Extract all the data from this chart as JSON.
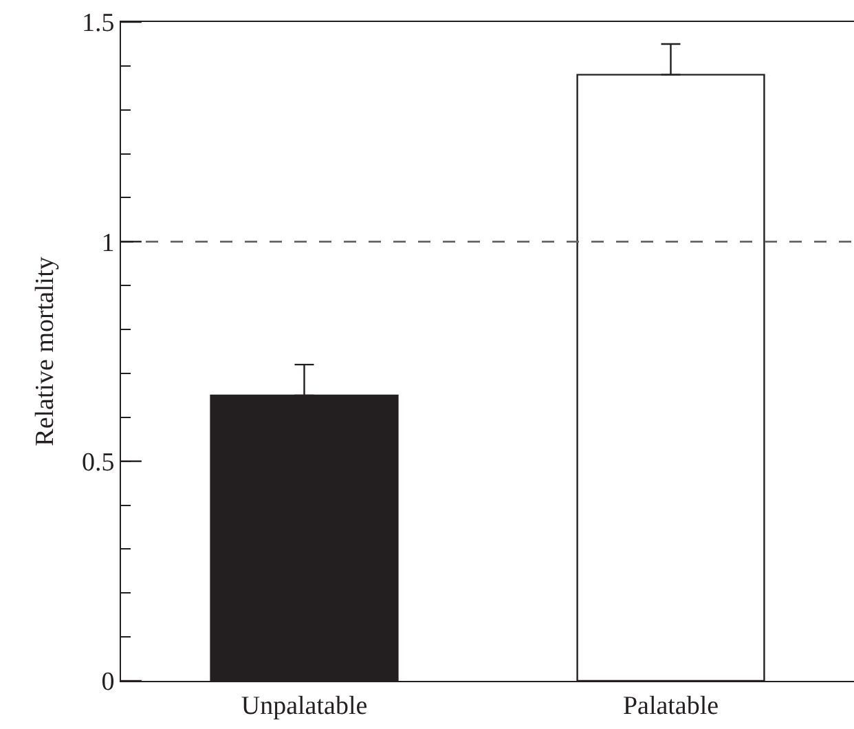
{
  "chart_data": {
    "type": "bar",
    "ylabel": "Relative mortality",
    "categories": [
      "Unpalatable",
      "Palatable"
    ],
    "values": [
      0.65,
      1.38
    ],
    "colors": [
      "#231f20",
      "#ffffff"
    ],
    "errors": [
      [
        0.65,
        0.72
      ],
      [
        1.38,
        1.45
      ]
    ],
    "ylim": [
      0,
      1.5
    ],
    "yticks": [
      0,
      {
        "value": 0.1,
        "label": null
      },
      {
        "value": 0.2,
        "label": null
      },
      {
        "value": 0.3,
        "label": null
      },
      {
        "value": 0.4,
        "label": null
      },
      0.5,
      {
        "value": 0.6,
        "label": null
      },
      {
        "value": 0.7,
        "label": null
      },
      {
        "value": 0.8,
        "label": null
      },
      {
        "value": 0.9,
        "label": null
      },
      1,
      {
        "value": 1.1,
        "label": null
      },
      {
        "value": 1.2,
        "label": null
      },
      {
        "value": 1.3,
        "label": null
      },
      {
        "value": 1.4,
        "label": null
      },
      1.5
    ],
    "ref_lines": [
      {
        "axis": "y",
        "value": 1,
        "color": "#666666",
        "line_style": "dashed"
      }
    ]
  }
}
